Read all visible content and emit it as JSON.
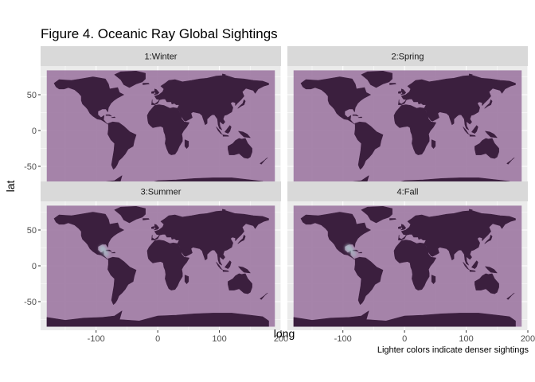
{
  "colors": {
    "panel_bg": "#ebebeb",
    "strip_bg": "#d9d9d9",
    "ocean": "#9e7aa3",
    "land": "#3b1f3e",
    "sighting": "#a9c1c8",
    "grid": "#ffffff"
  },
  "chart_data": {
    "type": "heatmap",
    "title": "Figure 4. Oceanic Ray Global Sightings",
    "xlabel": "long",
    "ylabel": "lat",
    "caption": "Lighter colors indicate denser sightings",
    "xlim": [
      -190,
      200
    ],
    "ylim": [
      -90,
      90
    ],
    "x_ticks": [
      -100,
      0,
      100,
      200
    ],
    "x_tick_labels": [
      "-100",
      "0",
      "100",
      "200"
    ],
    "y_ticks": [
      50,
      0,
      -50
    ],
    "y_tick_labels": [
      "50",
      "0",
      "-50"
    ],
    "map_extent": {
      "long": [
        -180,
        190
      ],
      "lat": [
        -85,
        84
      ]
    },
    "facets": [
      {
        "label": "1:Winter",
        "sightings": []
      },
      {
        "label": "2:Spring",
        "sightings": []
      },
      {
        "label": "3:Summer",
        "sightings": [
          {
            "long": -90,
            "lat": 24,
            "density": 0.7
          },
          {
            "long": -86,
            "lat": 20,
            "density": 0.5
          },
          {
            "long": -83,
            "lat": 16,
            "density": 0.3
          }
        ]
      },
      {
        "label": "4:Fall",
        "sightings": [
          {
            "long": -91,
            "lat": 25,
            "density": 0.8
          },
          {
            "long": -86,
            "lat": 21,
            "density": 0.5
          },
          {
            "long": -82,
            "lat": 16,
            "density": 0.3
          }
        ]
      }
    ]
  }
}
